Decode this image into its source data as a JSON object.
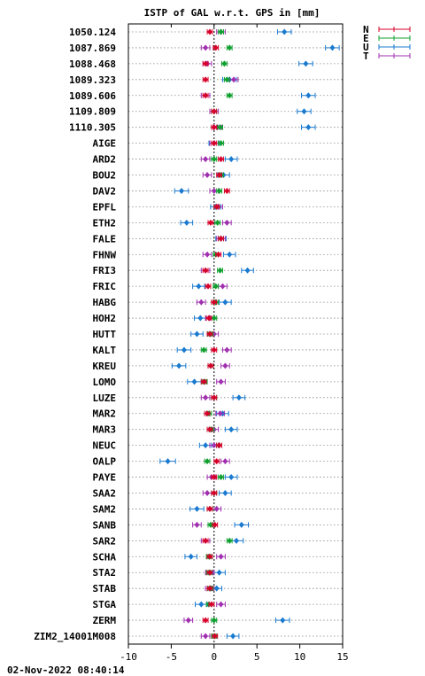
{
  "chart_data": {
    "type": "scatter",
    "title": "ISTP of GAL w.r.t. GPS in [mm]",
    "timestamp": "02-Nov-2022 08:40:14",
    "xlim": [
      -10,
      15
    ],
    "xticks": [
      -10,
      -5,
      0,
      5,
      10,
      15
    ],
    "xtick_labels": [
      "-10",
      "-5",
      "0",
      "5",
      "10",
      "15"
    ],
    "grid": "horizontal dotted",
    "legend_position": "top-right outside",
    "error_bars": true,
    "categories": [
      "1050.124",
      "1087.869",
      "1088.468",
      "1089.323",
      "1089.606",
      "1109.809",
      "1110.305",
      "AIGE",
      "ARD2",
      "BOU2",
      "DAV2",
      "EPFL",
      "ETH2",
      "FALE",
      "FHNW",
      "FRI3",
      "FRIC",
      "HABG",
      "HOH2",
      "HUTT",
      "KALT",
      "KREU",
      "LOMO",
      "LUZE",
      "MAR2",
      "MAR3",
      "NEUC",
      "OALP",
      "PAYE",
      "SAA2",
      "SAM2",
      "SANB",
      "SAR2",
      "SCHA",
      "STA2",
      "STAB",
      "STGA",
      "ZERM",
      "ZIM2_14001M008"
    ],
    "series": [
      {
        "name": "N",
        "color": "#d7002a",
        "values": [
          -0.5,
          0.2,
          -1.0,
          -1.0,
          -1.0,
          0,
          0,
          0,
          0.8,
          0.6,
          1.5,
          0.3,
          -0.4,
          0.8,
          0.5,
          -1.0,
          -0.7,
          0,
          -0.6,
          -0.5,
          0,
          -0.4,
          -1.2,
          0,
          -0.8,
          -0.5,
          0.6,
          0.3,
          0,
          0,
          -0.5,
          0.1,
          -1.0,
          -0.5,
          -0.5,
          -0.5,
          -0.3,
          -1.0,
          0.1
        ],
        "errors": [
          0.3,
          0.3,
          0.3,
          0.3,
          0.3,
          0.3,
          0.3,
          0.3,
          0.3,
          0.3,
          0.3,
          0.3,
          0.3,
          0.3,
          0.3,
          0.3,
          0.3,
          0.3,
          0.3,
          0.3,
          0.3,
          0.3,
          0.3,
          0.3,
          0.3,
          0.3,
          0.3,
          0.3,
          0.3,
          0.3,
          0.3,
          0.3,
          0.3,
          0.3,
          0.3,
          0.3,
          0.3,
          0.3,
          0.3
        ]
      },
      {
        "name": "E",
        "color": "#10a030",
        "values": [
          0.8,
          1.8,
          1.2,
          1.5,
          1.8,
          0,
          0.7,
          0.8,
          0,
          0.8,
          0.6,
          0.3,
          0.4,
          0.8,
          0.2,
          0.7,
          0.2,
          0.2,
          0,
          -0.4,
          -1.2,
          -0.4,
          -1.1,
          0,
          -0.6,
          -0.3,
          0.6,
          -0.8,
          0.8,
          0,
          -0.5,
          -0.4,
          1.8,
          -0.6,
          -0.6,
          -0.4,
          -0.6,
          0,
          0
        ],
        "errors": [
          0.3,
          0.3,
          0.3,
          0.3,
          0.3,
          0.3,
          0.3,
          0.3,
          0.3,
          0.3,
          0.3,
          0.3,
          0.3,
          0.3,
          0.3,
          0.3,
          0.3,
          0.3,
          0.3,
          0.3,
          0.3,
          0.3,
          0.3,
          0.3,
          0.3,
          0.3,
          0.3,
          0.3,
          0.3,
          0.3,
          0.3,
          0.3,
          0.3,
          0.3,
          0.3,
          0.3,
          0.3,
          0.3,
          0.3
        ]
      },
      {
        "name": "U",
        "color": "#1a7ad0",
        "values": [
          8.2,
          13.8,
          10.7,
          1.8,
          11.0,
          10.5,
          11.0,
          0,
          2.0,
          1.1,
          -3.8,
          0.2,
          -3.2,
          0.8,
          1.8,
          3.9,
          -1.8,
          1.3,
          -1.6,
          -2.0,
          -3.5,
          -4.1,
          -2.3,
          2.9,
          1.0,
          2.0,
          -1.0,
          -5.4,
          2.0,
          1.3,
          -2.0,
          3.2,
          2.6,
          -2.7,
          0.6,
          0.3,
          -1.5,
          8.0,
          2.2
        ],
        "errors": [
          0.8,
          0.8,
          0.8,
          0.8,
          0.8,
          0.8,
          0.8,
          0.6,
          0.7,
          0.7,
          0.8,
          0.6,
          0.7,
          0.6,
          0.7,
          0.7,
          0.7,
          0.7,
          0.7,
          0.7,
          0.8,
          0.8,
          0.8,
          0.7,
          0.7,
          0.7,
          0.7,
          0.9,
          0.7,
          0.7,
          0.8,
          0.8,
          0.8,
          0.7,
          0.7,
          0.6,
          0.7,
          0.8,
          0.7
        ]
      },
      {
        "name": "T",
        "color": "#a030b0",
        "values": [
          0.8,
          -1.0,
          -0.8,
          2.3,
          -1.0,
          0,
          0.4,
          0,
          -1.0,
          -0.8,
          0,
          0.5,
          1.5,
          0.8,
          -0.8,
          -1.0,
          1.0,
          -1.5,
          -0.5,
          0,
          1.5,
          1.3,
          0.8,
          -1.0,
          0.7,
          0,
          0,
          1.3,
          -0.3,
          -0.8,
          0.3,
          -2.0,
          -1.0,
          0.8,
          -0.5,
          -0.5,
          0.8,
          -3.0,
          -1.0
        ],
        "errors": [
          0.5,
          0.5,
          0.5,
          0.5,
          0.5,
          0.5,
          0.5,
          0.5,
          0.5,
          0.5,
          0.5,
          0.5,
          0.5,
          0.5,
          0.5,
          0.5,
          0.5,
          0.5,
          0.5,
          0.5,
          0.5,
          0.5,
          0.5,
          0.5,
          0.5,
          0.5,
          0.5,
          0.5,
          0.5,
          0.5,
          0.5,
          0.5,
          0.5,
          0.5,
          0.5,
          0.5,
          0.5,
          0.5,
          0.5
        ]
      }
    ]
  }
}
